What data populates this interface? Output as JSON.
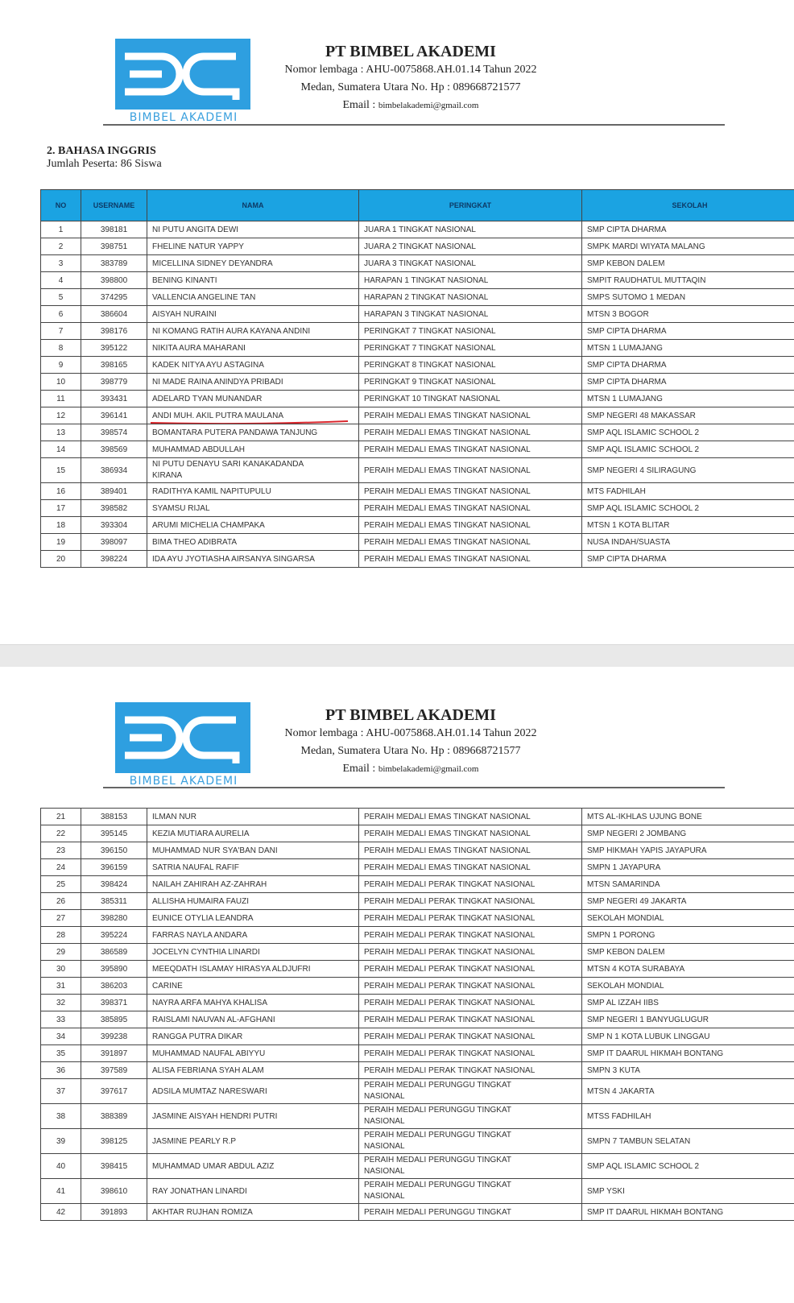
{
  "letterhead": {
    "logo_text": "BIMBEL AKADEMI",
    "company": "PT BIMBEL AKADEMI",
    "registration": "Nomor lembaga : AHU-0075868.AH.01.14 Tahun 2022",
    "address": "Medan, Sumatera Utara No. Hp : 089668721577",
    "email_label": "Email : ",
    "email": "bimbelakademi@gmail.com"
  },
  "section": {
    "title": "2.   BAHASA INGGRIS",
    "participants": "Jumlah Peserta: 86 Siswa"
  },
  "colors": {
    "header_blue": "#1ba3e2",
    "logo_blue": "#2e9fe0",
    "underline_red": "#d9262c"
  },
  "table": {
    "columns": [
      "NO",
      "USERNAME",
      "NAMA",
      "PERINGKAT",
      "SEKOLAH"
    ],
    "page1_rows": [
      [
        "1",
        "398181",
        "NI PUTU ANGITA DEWI",
        "JUARA 1 TINGKAT NASIONAL",
        "SMP CIPTA DHARMA"
      ],
      [
        "2",
        "398751",
        "FHELINE NATUR YAPPY",
        "JUARA 2 TINGKAT NASIONAL",
        "SMPK MARDI WIYATA MALANG"
      ],
      [
        "3",
        "383789",
        "MICELLINA SIDNEY DEYANDRA",
        "JUARA 3 TINGKAT NASIONAL",
        "SMP KEBON DALEM"
      ],
      [
        "4",
        "398800",
        "BENING KINANTI",
        "HARAPAN 1 TINGKAT NASIONAL",
        "SMPIT RAUDHATUL MUTTAQIN"
      ],
      [
        "5",
        "374295",
        "VALLENCIA ANGELINE TAN",
        "HARAPAN 2 TINGKAT NASIONAL",
        "SMPS SUTOMO 1 MEDAN"
      ],
      [
        "6",
        "386604",
        "AISYAH NURAINI",
        "HARAPAN 3 TINGKAT NASIONAL",
        "MTSN 3 BOGOR"
      ],
      [
        "7",
        "398176",
        "NI KOMANG RATIH AURA KAYANA ANDINI",
        "PERINGKAT 7 TINGKAT NASIONAL",
        "SMP CIPTA DHARMA"
      ],
      [
        "8",
        "395122",
        "NIKITA AURA MAHARANI",
        "PERINGKAT 7 TINGKAT NASIONAL",
        "MTSN 1 LUMAJANG"
      ],
      [
        "9",
        "398165",
        "KADEK NITYA AYU ASTAGINA",
        "PERINGKAT 8 TINGKAT NASIONAL",
        "SMP CIPTA DHARMA"
      ],
      [
        "10",
        "398779",
        "NI MADE RAINA ANINDYA PRIBADI",
        "PERINGKAT 9 TINGKAT NASIONAL",
        "SMP CIPTA DHARMA"
      ],
      [
        "11",
        "393431",
        "ADELARD TYAN MUNANDAR",
        "PERINGKAT 10 TINGKAT NASIONAL",
        "MTSN 1 LUMAJANG"
      ],
      [
        "12",
        "396141",
        "ANDI MUH. AKIL PUTRA MAULANA",
        "PERAIH MEDALI EMAS TINGKAT NASIONAL",
        "SMP NEGERI 48 MAKASSAR"
      ],
      [
        "13",
        "398574",
        "BOMANTARA PUTERA PANDAWA TANJUNG",
        "PERAIH MEDALI EMAS TINGKAT NASIONAL",
        "SMP AQL ISLAMIC SCHOOL 2"
      ],
      [
        "14",
        "398569",
        "MUHAMMAD ABDULLAH",
        "PERAIH MEDALI EMAS TINGKAT NASIONAL",
        "SMP AQL ISLAMIC SCHOOL 2"
      ],
      [
        "15",
        "386934",
        "NI PUTU DENAYU SARI KANAKADANDA KIRANA",
        "PERAIH MEDALI EMAS TINGKAT NASIONAL",
        "SMP NEGERI 4 SILIRAGUNG"
      ],
      [
        "16",
        "389401",
        "RADITHYA KAMIL NAPITUPULU",
        "PERAIH MEDALI EMAS TINGKAT NASIONAL",
        "MTS FADHILAH"
      ],
      [
        "17",
        "398582",
        "SYAMSU RIJAL",
        "PERAIH MEDALI EMAS TINGKAT NASIONAL",
        "SMP AQL ISLAMIC SCHOOL 2"
      ],
      [
        "18",
        "393304",
        "ARUMI MICHELIA CHAMPAKA",
        "PERAIH MEDALI EMAS TINGKAT NASIONAL",
        "MTSN 1 KOTA BLITAR"
      ],
      [
        "19",
        "398097",
        "BIMA THEO ADIBRATA",
        "PERAIH MEDALI EMAS TINGKAT NASIONAL",
        "NUSA INDAH/SUASTA"
      ],
      [
        "20",
        "398224",
        "IDA AYU JYOTIASHA AIRSANYA SINGARSA",
        "PERAIH MEDALI EMAS TINGKAT NASIONAL",
        "SMP CIPTA DHARMA"
      ]
    ],
    "page2_rows": [
      [
        "21",
        "388153",
        "ILMAN NUR",
        "PERAIH MEDALI EMAS TINGKAT NASIONAL",
        "MTS AL-IKHLAS UJUNG BONE"
      ],
      [
        "22",
        "395145",
        "KEZIA MUTIARA AURELIA",
        "PERAIH MEDALI EMAS TINGKAT NASIONAL",
        "SMP NEGERI 2 JOMBANG"
      ],
      [
        "23",
        "396150",
        "MUHAMMAD NUR SYA'BAN DANI",
        "PERAIH MEDALI EMAS TINGKAT NASIONAL",
        "SMP HIKMAH YAPIS JAYAPURA"
      ],
      [
        "24",
        "396159",
        "SATRIA NAUFAL RAFIF",
        "PERAIH MEDALI EMAS TINGKAT NASIONAL",
        "SMPN 1 JAYAPURA"
      ],
      [
        "25",
        "398424",
        "NAILAH ZAHIRAH AZ-ZAHRAH",
        "PERAIH MEDALI PERAK TINGKAT NASIONAL",
        "MTSN SAMARINDA"
      ],
      [
        "26",
        "385311",
        "ALLISHA HUMAIRA FAUZI",
        "PERAIH MEDALI PERAK TINGKAT NASIONAL",
        "SMP NEGERI 49 JAKARTA"
      ],
      [
        "27",
        "398280",
        "EUNICE OTYLIA LEANDRA",
        "PERAIH MEDALI PERAK TINGKAT NASIONAL",
        "SEKOLAH MONDIAL"
      ],
      [
        "28",
        "395224",
        "FARRAS NAYLA ANDARA",
        "PERAIH MEDALI PERAK TINGKAT NASIONAL",
        "SMPN 1 PORONG"
      ],
      [
        "29",
        "386589",
        "JOCELYN CYNTHIA LINARDI",
        "PERAIH MEDALI PERAK TINGKAT NASIONAL",
        "SMP KEBON DALEM"
      ],
      [
        "30",
        "395890",
        "MEEQDATH ISLAMAY HIRASYA ALDJUFRI",
        "PERAIH MEDALI PERAK TINGKAT NASIONAL",
        "MTSN 4 KOTA SURABAYA"
      ],
      [
        "31",
        "386203",
        "CARINE",
        "PERAIH MEDALI PERAK TINGKAT NASIONAL",
        "SEKOLAH MONDIAL"
      ],
      [
        "32",
        "398371",
        "NAYRA ARFA MAHYA KHALISA",
        "PERAIH MEDALI PERAK TINGKAT NASIONAL",
        "SMP AL IZZAH IIBS"
      ],
      [
        "33",
        "385895",
        "RAISLAMI NAUVAN AL-AFGHANI",
        "PERAIH MEDALI PERAK TINGKAT NASIONAL",
        "SMP NEGERI 1 BANYUGLUGUR"
      ],
      [
        "34",
        "399238",
        "RANGGA PUTRA DIKAR",
        "PERAIH MEDALI PERAK TINGKAT NASIONAL",
        "SMP N 1 KOTA LUBUK LINGGAU"
      ],
      [
        "35",
        "391897",
        "MUHAMMAD NAUFAL ABIYYU",
        "PERAIH MEDALI PERAK TINGKAT NASIONAL",
        "SMP IT DAARUL HIKMAH BONTANG"
      ],
      [
        "36",
        "397589",
        "ALISA FEBRIANA SYAH ALAM",
        "PERAIH MEDALI PERAK TINGKAT NASIONAL",
        "SMPN 3 KUTA"
      ],
      [
        "37",
        "397617",
        "ADSILA MUMTAZ NARESWARI",
        "PERAIH MEDALI PERUNGGU TINGKAT NASIONAL",
        "MTSN 4 JAKARTA"
      ],
      [
        "38",
        "388389",
        "JASMINE AISYAH HENDRI PUTRI",
        "PERAIH MEDALI PERUNGGU TINGKAT NASIONAL",
        "MTSS FADHILAH"
      ],
      [
        "39",
        "398125",
        "JASMINE PEARLY R.P",
        "PERAIH MEDALI PERUNGGU TINGKAT NASIONAL",
        "SMPN 7 TAMBUN SELATAN"
      ],
      [
        "40",
        "398415",
        "MUHAMMAD UMAR ABDUL AZIZ",
        "PERAIH MEDALI PERUNGGU TINGKAT NASIONAL",
        "SMP AQL ISLAMIC SCHOOL 2"
      ],
      [
        "41",
        "398610",
        "RAY JONATHAN LINARDI",
        "PERAIH MEDALI PERUNGGU TINGKAT NASIONAL",
        "SMP YSKI"
      ],
      [
        "42",
        "391893",
        "AKHTAR RUJHAN ROMIZA",
        "PERAIH MEDALI PERUNGGU TINGKAT",
        "SMP IT DAARUL HIKMAH BONTANG"
      ]
    ],
    "underlined_row": "12"
  }
}
